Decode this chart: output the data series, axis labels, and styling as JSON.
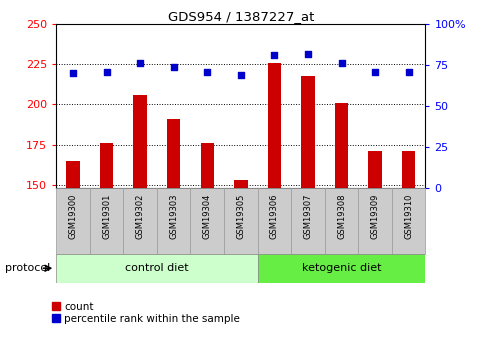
{
  "title": "GDS954 / 1387227_at",
  "samples": [
    "GSM19300",
    "GSM19301",
    "GSM19302",
    "GSM19303",
    "GSM19304",
    "GSM19305",
    "GSM19306",
    "GSM19307",
    "GSM19308",
    "GSM19309",
    "GSM19310"
  ],
  "bar_values": [
    165,
    176,
    206,
    191,
    176,
    153,
    226,
    218,
    201,
    171,
    171
  ],
  "dot_values": [
    70,
    71,
    76,
    74,
    71,
    69,
    81,
    82,
    76,
    71,
    71
  ],
  "ylim_left": [
    148,
    250
  ],
  "ylim_right": [
    0,
    100
  ],
  "yticks_left": [
    150,
    175,
    200,
    225,
    250
  ],
  "yticks_right": [
    0,
    25,
    50,
    75,
    100
  ],
  "ytick_right_labels": [
    "0",
    "25",
    "50",
    "75",
    "100%"
  ],
  "n_control": 6,
  "bar_color": "#cc0000",
  "dot_color": "#0000cc",
  "control_color": "#ccffcc",
  "ketogenic_color": "#66ee44",
  "sample_bg_color": "#cccccc",
  "protocol_label": "protocol",
  "control_label": "control diet",
  "ketogenic_label": "ketogenic diet",
  "legend_count": "count",
  "legend_percentile": "percentile rank within the sample"
}
